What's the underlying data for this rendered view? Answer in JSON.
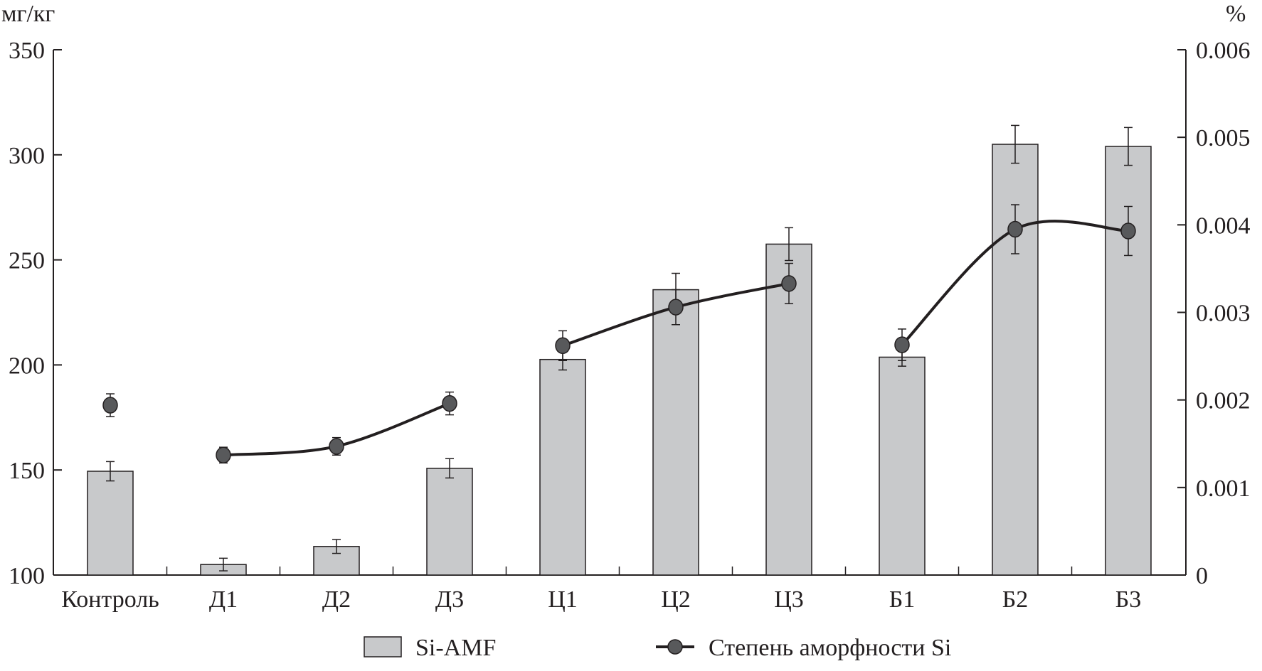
{
  "chart_data": {
    "type": "bar+line",
    "categories": [
      "Контроль",
      "Д1",
      "Д2",
      "Д3",
      "Ц1",
      "Ц2",
      "Ц3",
      "Б1",
      "Б2",
      "Б3"
    ],
    "left_axis": {
      "label": "мг/кг",
      "range": [
        100,
        350
      ],
      "ticks": [
        "100",
        "150",
        "200",
        "250",
        "300",
        "350"
      ]
    },
    "right_axis": {
      "label": "%",
      "range": [
        0,
        0.006
      ],
      "ticks": [
        "0",
        "0.001",
        "0.002",
        "0.003",
        "0.004",
        "0.005",
        "0.006"
      ]
    },
    "series": [
      {
        "name": "Si-AMF",
        "type": "bar",
        "axis": "left",
        "color": "#c8c9cb",
        "values": [
          149.4,
          105,
          113.6,
          150.8,
          202.6,
          235.8,
          257.5,
          203.7,
          305,
          304
        ],
        "errors": [
          4.6,
          3,
          3.3,
          4.6,
          5,
          7.8,
          7.8,
          4.3,
          9,
          9
        ]
      },
      {
        "name": "Степень аморфности Si",
        "type": "line",
        "axis": "right",
        "color": "#231f20",
        "marker_color": "#58595b",
        "values": [
          0.00194,
          0.00137,
          0.00147,
          0.00196,
          0.00262,
          0.00306,
          0.00333,
          0.00263,
          0.00395,
          0.00393
        ],
        "errors": [
          0.00013,
          9e-05,
          0.0001,
          0.00013,
          0.00017,
          0.0002,
          0.00023,
          0.00018,
          0.00028,
          0.00028
        ],
        "line_groups": [
          [
            1,
            2,
            3
          ],
          [
            4,
            5,
            6
          ],
          [
            7,
            8,
            9
          ]
        ]
      }
    ],
    "legend": {
      "position": "bottom",
      "items": [
        "Si-AMF",
        "Степень аморфности Si"
      ]
    },
    "grid": false
  }
}
